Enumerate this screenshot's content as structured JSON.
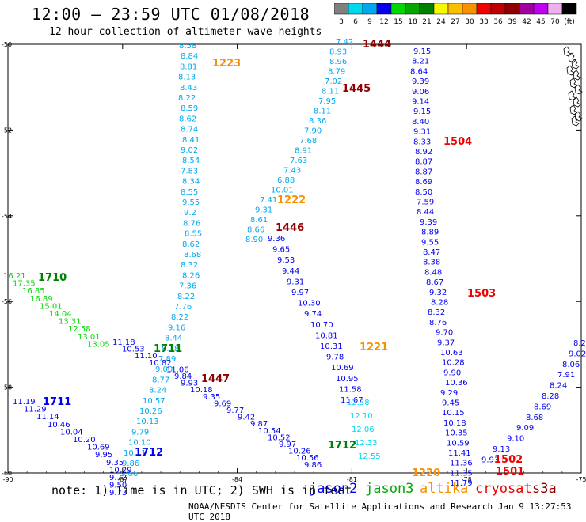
{
  "header": {
    "title": "12:00 – 23:59 UTC 01/08/2018",
    "subtitle": "12 hour collection of altimeter wave heights"
  },
  "colorbar": {
    "labels": [
      "3",
      "6",
      "9",
      "12",
      "15",
      "18",
      "21",
      "24",
      "27",
      "30",
      "33",
      "36",
      "39",
      "42",
      "45",
      "70",
      "(ft)"
    ],
    "colors": [
      "#808080",
      "#00d8f0",
      "#00a8f0",
      "#0000f0",
      "#00d800",
      "#00a800",
      "#008000",
      "#f8f800",
      "#f8c000",
      "#f89000",
      "#f00000",
      "#c00000",
      "#900000",
      "#a000a0",
      "#c000f0",
      "#f0b0f0",
      "#000000"
    ]
  },
  "axes": {
    "lat_labels": [
      "-50",
      "-52",
      "-54",
      "-56",
      "-58",
      "-60"
    ],
    "lon_labels": [
      "-90",
      "-87",
      "-84",
      "-81",
      "-78",
      "-75"
    ]
  },
  "time_labels": [
    {
      "text": "1444",
      "color": "#900000"
    },
    {
      "text": "1445",
      "color": "#900000"
    },
    {
      "text": "1446",
      "color": "#900000"
    },
    {
      "text": "1447",
      "color": "#900000"
    },
    {
      "text": "1223",
      "color": "#f89000"
    },
    {
      "text": "1222",
      "color": "#f89000"
    },
    {
      "text": "1221",
      "color": "#f89000"
    },
    {
      "text": "1220",
      "color": "#f89000"
    },
    {
      "text": "1504",
      "color": "#f00000"
    },
    {
      "text": "1503",
      "color": "#f00000"
    },
    {
      "text": "1502",
      "color": "#f00000"
    },
    {
      "text": "1501",
      "color": "#f00000"
    },
    {
      "text": "1710",
      "color": "#008000"
    },
    {
      "text": "1711",
      "color": "#008000"
    },
    {
      "text": "1712",
      "color": "#008000"
    },
    {
      "text": "1711",
      "color": "#0000f0"
    },
    {
      "text": "1712",
      "color": "#0000f0"
    }
  ],
  "tracks": [
    {
      "name": "altika-1223",
      "color": "#00a8f0",
      "values": [
        "8.58",
        "8.84",
        "8.81",
        "8.13",
        "8.43",
        "8.22",
        "8.59",
        "8.62",
        "8.74",
        "8.41",
        "9.02",
        "8.54",
        "7.83",
        "8.34",
        "8.55",
        "9.55",
        "9.2",
        "8.76",
        "8.55",
        "8.62",
        "8.68",
        "8.32",
        "8.26",
        "7.36",
        "8.22",
        "7.76",
        "8.22",
        "9.16",
        "8.44",
        "8.78",
        "7.89",
        "9.00",
        "8.77",
        "8.24",
        "10.57",
        "10.26",
        "10.13",
        "9.79",
        "10.10",
        "10.11",
        "9.86",
        "9.66"
      ]
    },
    {
      "name": "cryosat-1444",
      "color": "#00a8f0",
      "values": [
        "7.42",
        "8.93",
        "8.96",
        "8.79",
        "7.02",
        "8.11",
        "7.95",
        "8.11",
        "8.36",
        "7.90",
        "7.68",
        "8.91",
        "7.63",
        "7.43",
        "6.88",
        "10.01",
        "7.41",
        "9.31",
        "8.61",
        "8.66",
        "8.90"
      ]
    },
    {
      "name": "cryosat-1446-descent",
      "color": "#0000f0",
      "values": [
        "9.36",
        "9.65",
        "9.53",
        "9.44",
        "9.31",
        "9.97",
        "10.30",
        "9.74",
        "10.70",
        "10.81",
        "10.31",
        "9.78",
        "10.69",
        "10.95",
        "11.58",
        "11.67"
      ]
    },
    {
      "name": "altika-1221-light",
      "color": "#00d8f0",
      "values": [
        "12.38",
        "12.10",
        "12.06",
        "12.33",
        "12.55"
      ]
    },
    {
      "name": "cryosat-1504",
      "color": "#0000f0",
      "values": [
        "9.15",
        "8.21",
        "8.64",
        "9.39",
        "9.06",
        "9.14",
        "9.15",
        "8.40",
        "9.31",
        "8.33",
        "8.92",
        "8.87",
        "8.87",
        "8.69",
        "8.50",
        "7.59",
        "8.44",
        "9.39",
        "8.89",
        "9.55",
        "8.47",
        "8.38",
        "8.48",
        "8.67",
        "9.32",
        "8.28",
        "8.32",
        "8.76",
        "9.70",
        "9.37",
        "10.63",
        "10.28",
        "9.90",
        "10.36",
        "9.29",
        "9.45",
        "10.15",
        "10.18",
        "10.35",
        "10.59",
        "11.41",
        "11.36",
        "11.35",
        "11.79"
      ]
    },
    {
      "name": "jason3-1710",
      "color": "#00d800",
      "values": [
        "16.21",
        "17.35",
        "16.85",
        "16.89",
        "15.01",
        "14.04",
        "13.31",
        "12.58",
        "13.01",
        "13.05"
      ]
    },
    {
      "name": "jason2-1711a",
      "color": "#0000f0",
      "values": [
        "11.18",
        "10.53",
        "11.10",
        "10.82",
        "11.06",
        "9.84",
        "9.93",
        "10.18",
        "9.35",
        "9.69",
        "9.77",
        "9.42",
        "9.87",
        "10.54",
        "10.52",
        "9.97",
        "10.26",
        "10.56",
        "9.86"
      ]
    },
    {
      "name": "jason2-1711b",
      "color": "#0000f0",
      "values": [
        "11.19",
        "11.29",
        "11.14",
        "10.46",
        "10.04",
        "10.20",
        "10.69",
        "9.95",
        "9.35",
        "10.29",
        "9.72",
        "9.50",
        "9.73"
      ]
    },
    {
      "name": "s3a-east",
      "color": "#0000f0",
      "values": [
        "8.2",
        "9.02",
        "8.06",
        "7.91",
        "8.24",
        "8.28",
        "8.69",
        "8.68",
        "9.09",
        "9.10",
        "9.13",
        "9.93"
      ]
    }
  ],
  "legend": {
    "note": "note: 1) Time is in UTC; 2) SWH is in feet",
    "jason2": {
      "label": "jason2",
      "color": "#0000f0"
    },
    "jason3": {
      "label": "jason3",
      "color": "#00a800"
    },
    "altika": {
      "label": "altika",
      "color": "#f89000"
    },
    "cryosat": {
      "label": "cryosat",
      "color": "#f00000"
    },
    "s3a": {
      "label": "s3a",
      "color": "#900000"
    }
  },
  "credit": "NOAA/NESDIS Center for Satellite Applications and Research   Jan  9 13:27:53 UTC 2018"
}
